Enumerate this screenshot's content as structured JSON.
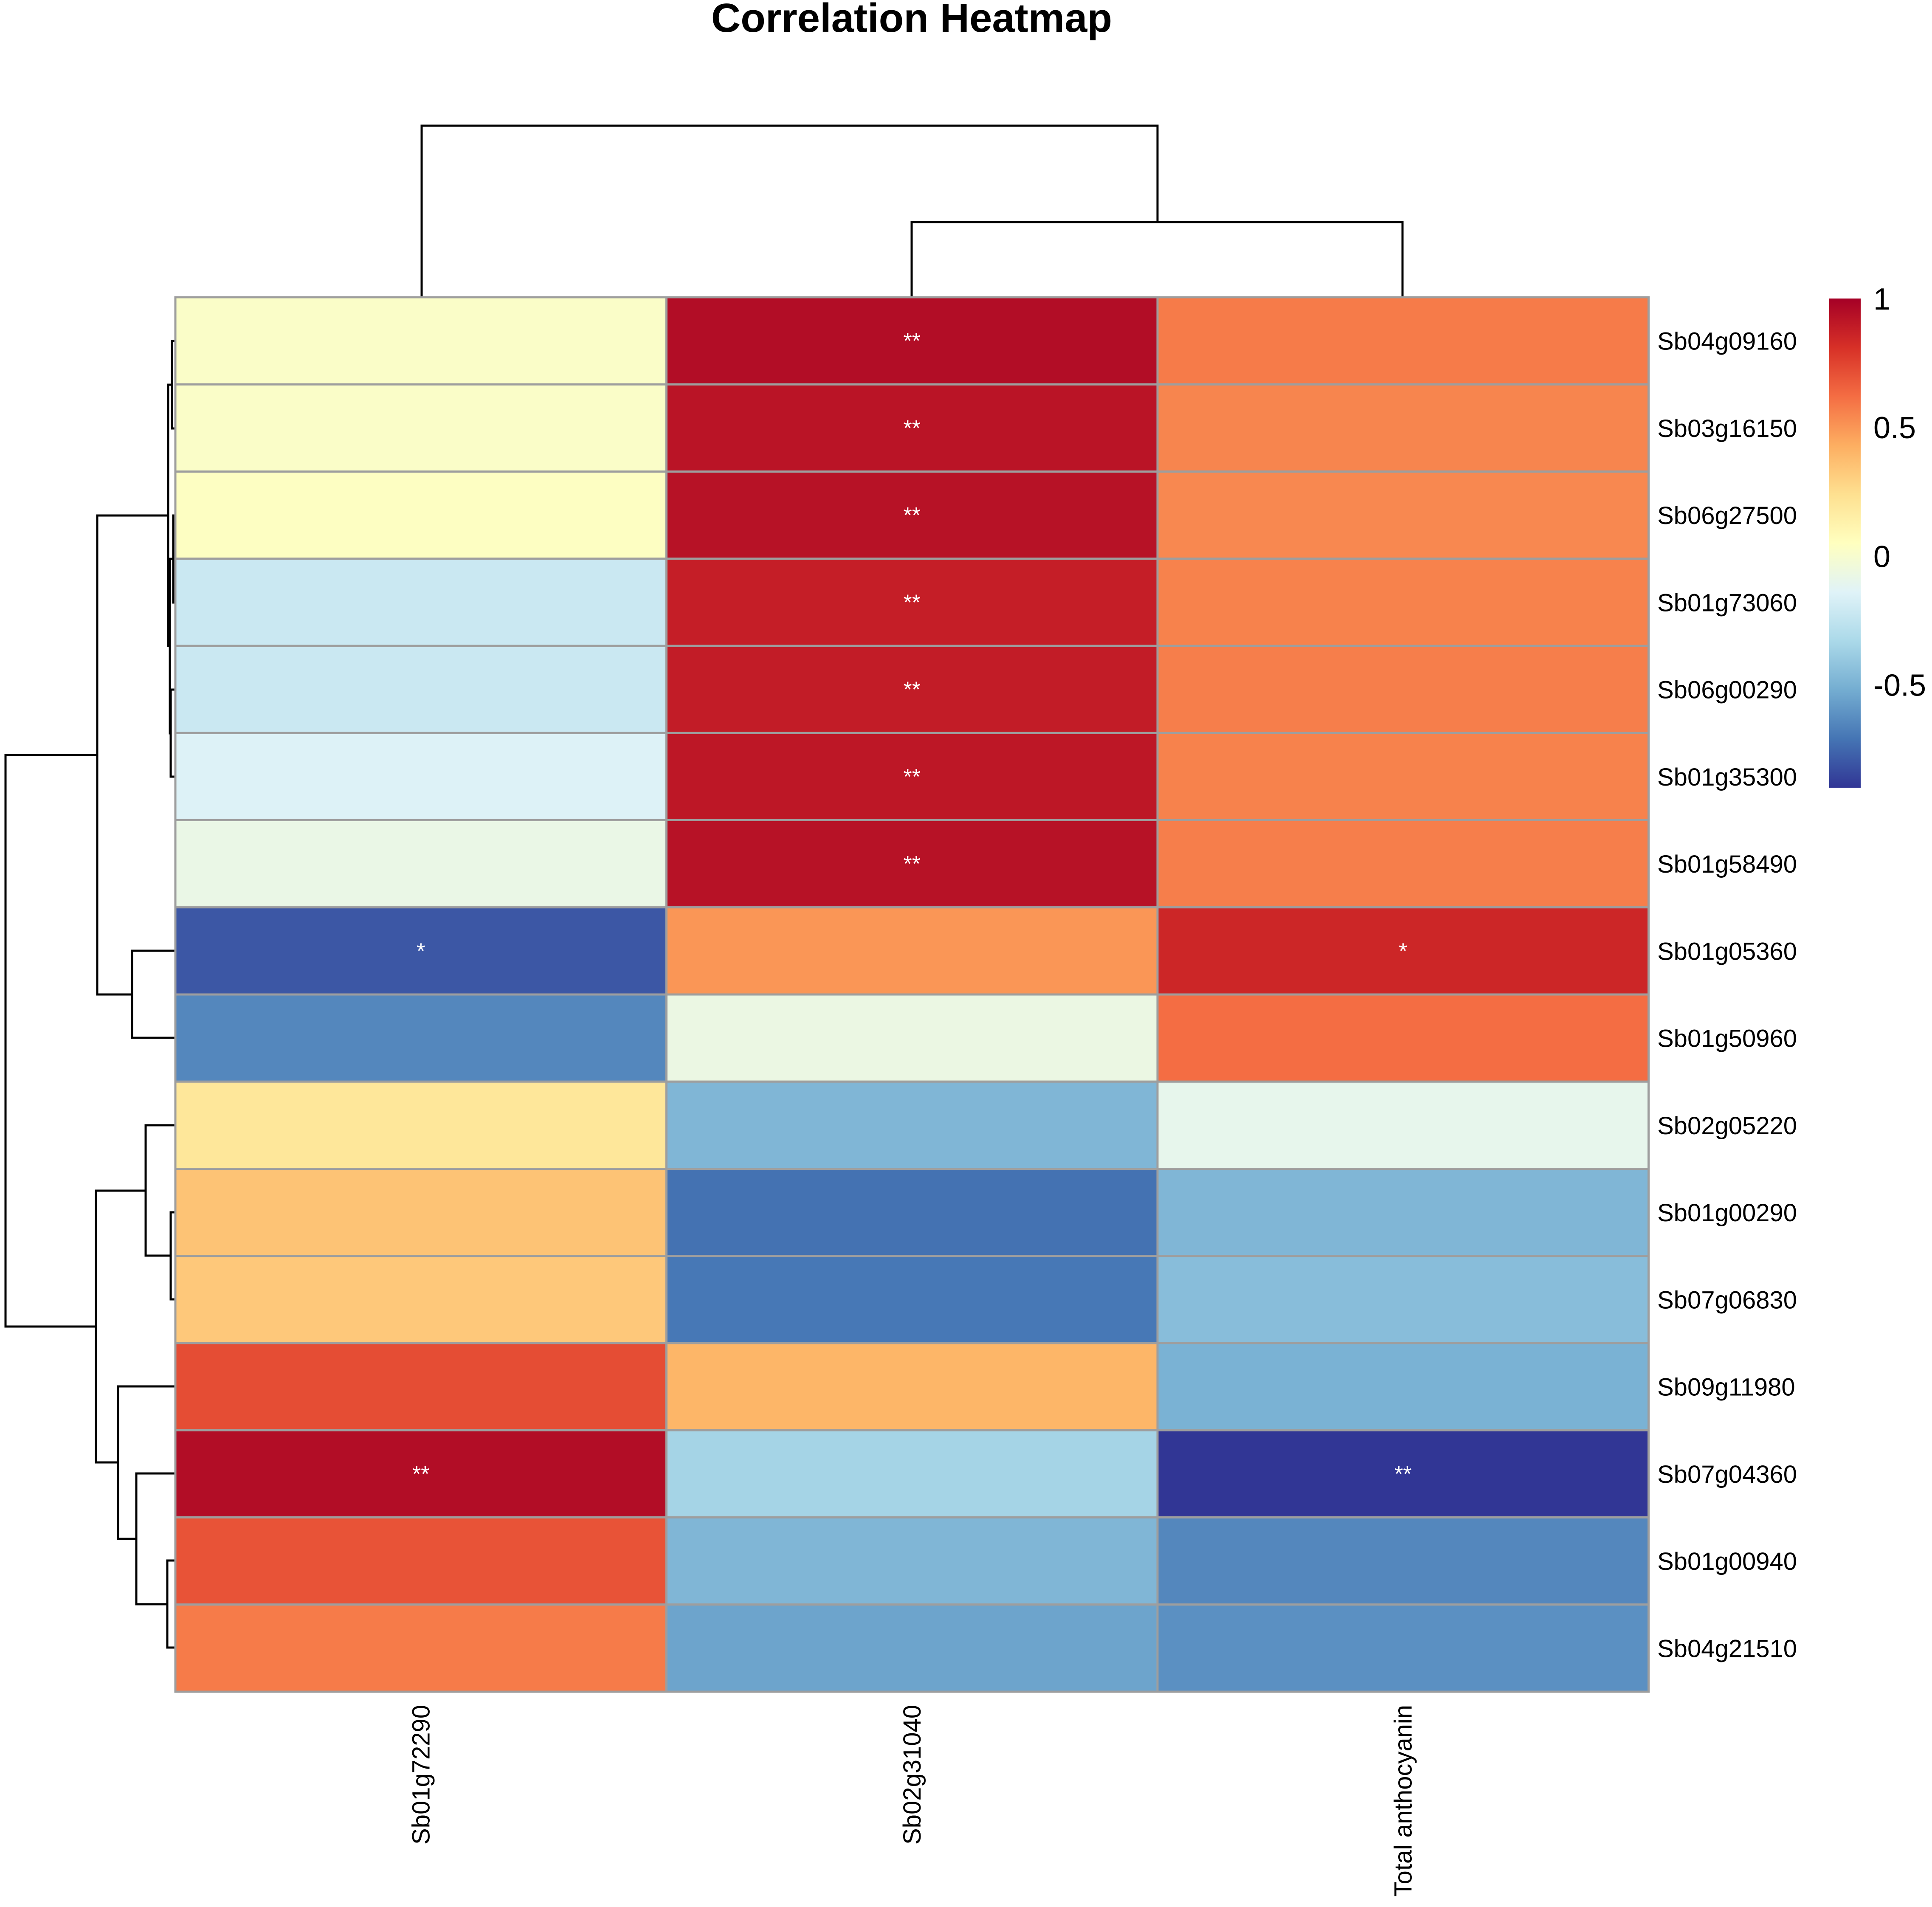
{
  "chart_data": {
    "type": "heatmap",
    "title": "Correlation Heatmap",
    "columns": [
      "Sb01g72290",
      "Sb02g31040",
      "Total anthocyanin"
    ],
    "rows": [
      "Sb04g09160",
      "Sb03g16150",
      "Sb06g27500",
      "Sb01g73060",
      "Sb06g00290",
      "Sb01g35300",
      "Sb01g58490",
      "Sb01g05360",
      "Sb01g50960",
      "Sb02g05220",
      "Sb01g00290",
      "Sb07g06830",
      "Sb09g11980",
      "Sb07g04360",
      "Sb01g00940",
      "Sb04g21510"
    ],
    "values": [
      [
        0.02,
        0.95,
        0.58
      ],
      [
        0.02,
        0.92,
        0.55
      ],
      [
        0.04,
        0.93,
        0.54
      ],
      [
        -0.22,
        0.88,
        0.56
      ],
      [
        -0.22,
        0.89,
        0.57
      ],
      [
        -0.15,
        0.91,
        0.56
      ],
      [
        -0.08,
        0.93,
        0.57
      ],
      [
        -0.8,
        0.5,
        0.85
      ],
      [
        -0.65,
        -0.07,
        0.62
      ],
      [
        0.2,
        -0.48,
        -0.1
      ],
      [
        0.35,
        -0.72,
        -0.48
      ],
      [
        0.33,
        -0.7,
        -0.45
      ],
      [
        0.72,
        0.4,
        -0.5
      ],
      [
        0.95,
        -0.35,
        -0.9
      ],
      [
        0.7,
        -0.48,
        -0.65
      ],
      [
        0.58,
        -0.55,
        -0.62
      ]
    ],
    "significance": [
      [
        "",
        "**",
        ""
      ],
      [
        "",
        "**",
        ""
      ],
      [
        "",
        "**",
        ""
      ],
      [
        "",
        "**",
        ""
      ],
      [
        "",
        "**",
        ""
      ],
      [
        "",
        "**",
        ""
      ],
      [
        "",
        "**",
        ""
      ],
      [
        "*",
        "",
        "*"
      ],
      [
        "",
        "",
        ""
      ],
      [
        "",
        "",
        ""
      ],
      [
        "",
        "",
        ""
      ],
      [
        "",
        "",
        ""
      ],
      [
        "",
        "",
        ""
      ],
      [
        "**",
        "",
        "**"
      ],
      [
        "",
        "",
        ""
      ],
      [
        "",
        "",
        ""
      ]
    ],
    "color_scale": {
      "min": -0.9,
      "max": 1.0,
      "ticks": [
        1,
        0.5,
        0,
        -0.5
      ],
      "tick_labels": [
        "1",
        "0.5",
        "0",
        "-0.5"
      ],
      "colors": [
        "#313695",
        "#4575B4",
        "#74ADD1",
        "#ABD9E9",
        "#E0F3F8",
        "#FFFFBF",
        "#FEE090",
        "#FDAE61",
        "#F46D43",
        "#D73027",
        "#A50026"
      ]
    },
    "legend_placement": "right"
  }
}
